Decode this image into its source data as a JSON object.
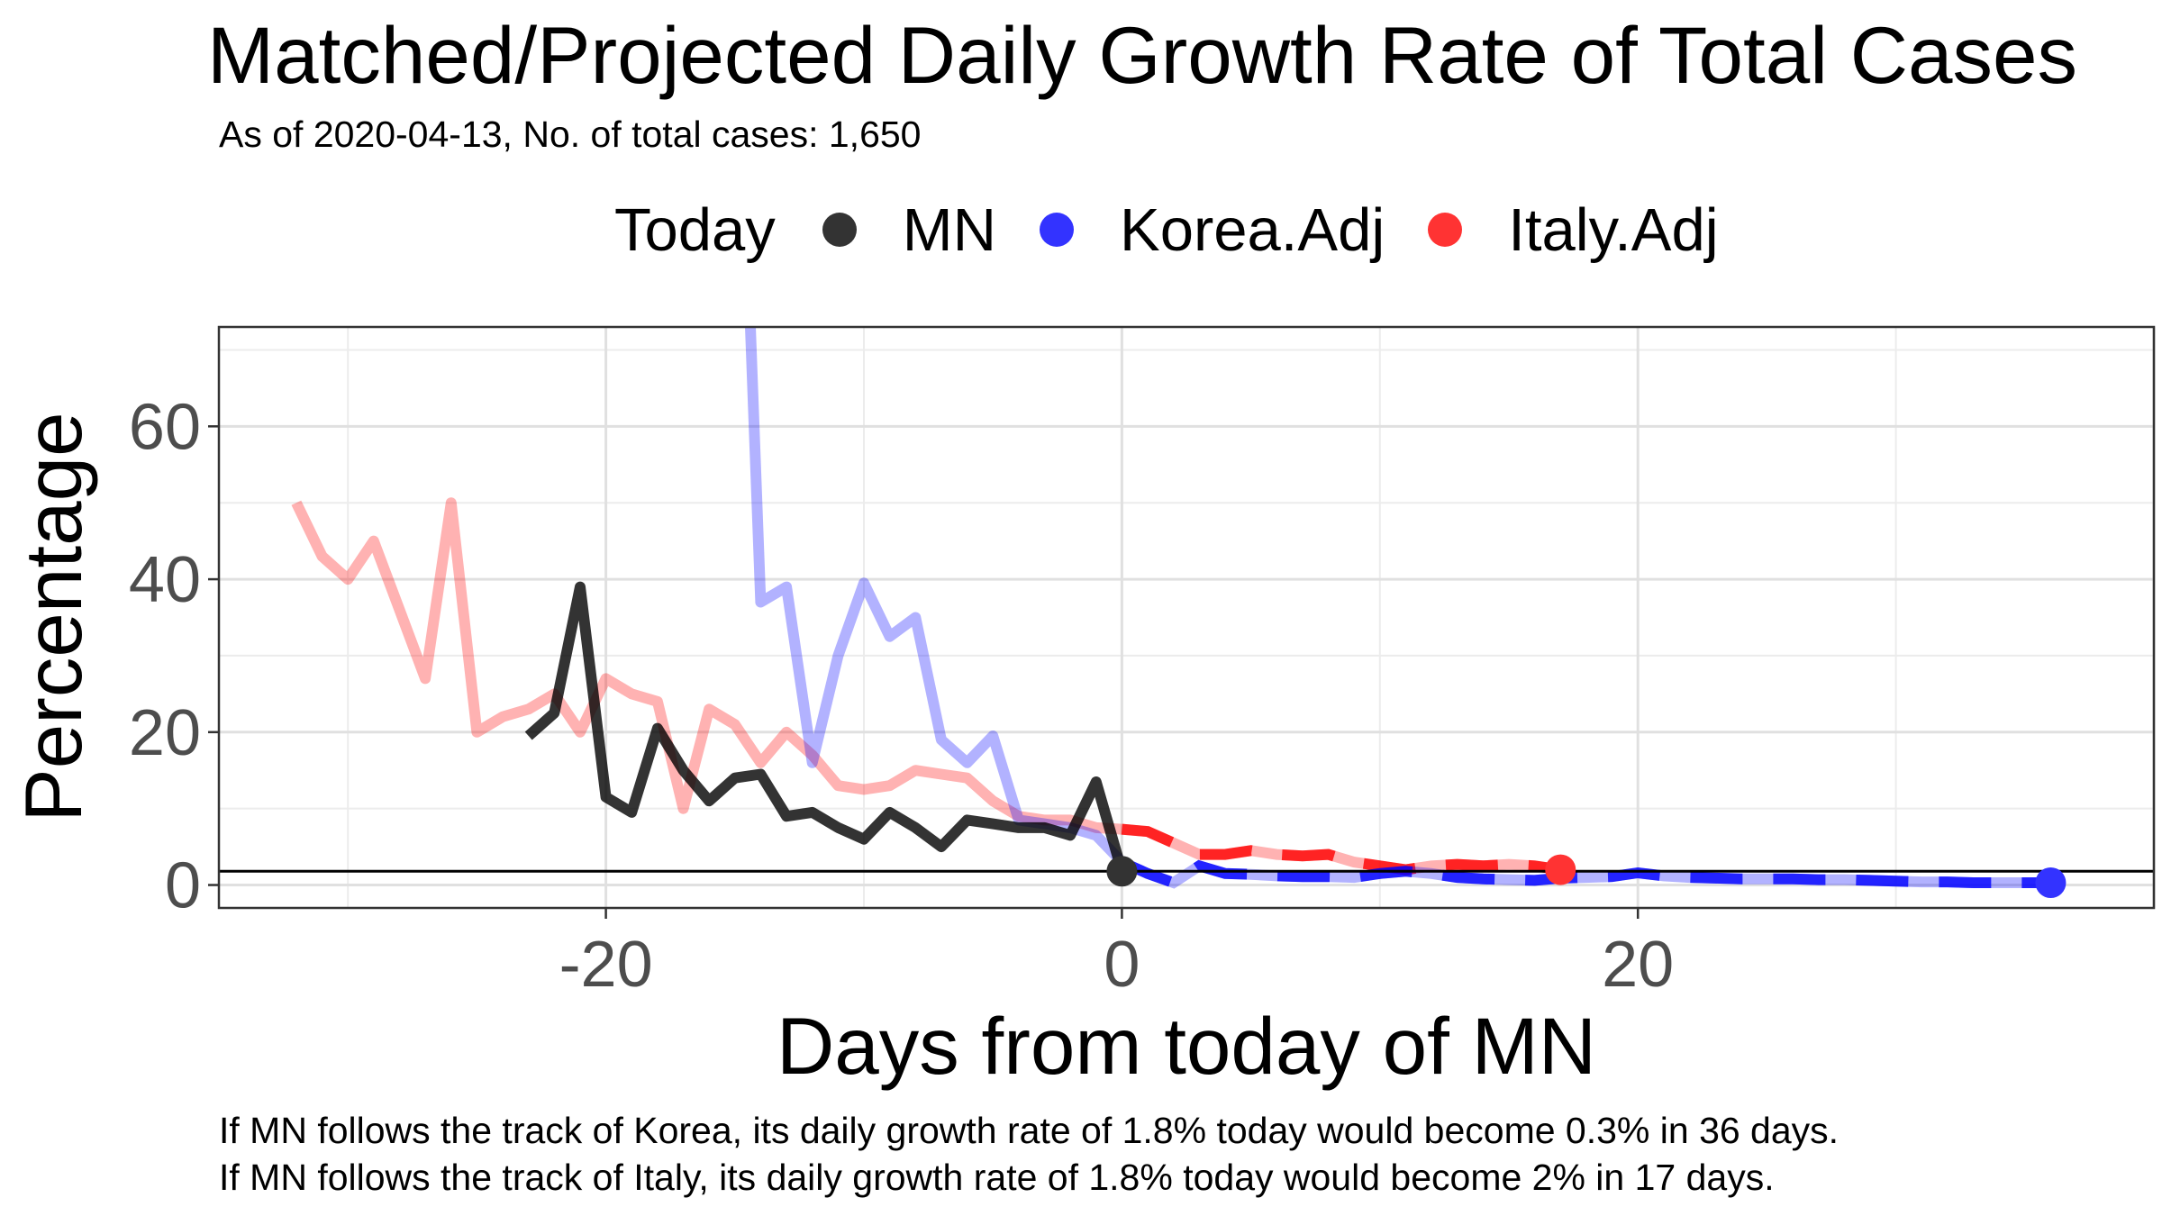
{
  "chart_data": {
    "type": "line",
    "title": "Matched/Projected Daily Growth Rate of Total Cases",
    "subtitle": "As of 2020-04-13, No. of total cases: 1,650",
    "xlabel": "Days from today of MN",
    "ylabel": "Percentage",
    "xlim": [
      -35,
      40
    ],
    "ylim": [
      -3,
      73
    ],
    "x_ticks": [
      -20,
      0,
      20
    ],
    "y_ticks": [
      0,
      20,
      40,
      60
    ],
    "grid": true,
    "legend": {
      "title": "Today",
      "position": "top"
    },
    "reference_line": {
      "y": 1.8
    },
    "series": [
      {
        "name": "Italy.Adj",
        "color": "#ff0000",
        "history": {
          "x": [
            -32,
            -31,
            -30,
            -29,
            -28,
            -27,
            -26,
            -25,
            -24,
            -23,
            -22,
            -21,
            -20,
            -19,
            -18,
            -17,
            -16,
            -15,
            -14,
            -13,
            -12,
            -11,
            -10,
            -9,
            -8,
            -7,
            -6,
            -5,
            -4,
            -3,
            -2,
            -1,
            0
          ],
          "y": [
            50,
            43,
            40,
            45,
            36,
            27,
            50,
            20,
            22,
            23,
            25,
            20,
            27,
            25,
            24,
            10,
            23,
            21,
            16,
            20,
            17,
            13,
            12.5,
            13,
            15,
            14.5,
            14,
            11,
            9,
            8.5,
            8.5,
            7.5,
            7.3
          ]
        },
        "projection": {
          "x": [
            0,
            1,
            2,
            3,
            4,
            5,
            6,
            7,
            8,
            9,
            10,
            11,
            12,
            13,
            14,
            15,
            16,
            17
          ],
          "y": [
            7.3,
            7,
            5.5,
            4,
            4,
            4.5,
            4,
            3.8,
            4,
            3,
            2.5,
            2,
            2.5,
            2.7,
            2.5,
            2.7,
            2.5,
            2
          ]
        },
        "end_point": {
          "x": 17,
          "y": 2
        }
      },
      {
        "name": "Korea.Adj",
        "color": "#0000ff",
        "history": {
          "x": [
            -14.4,
            -14,
            -13,
            -12,
            -11,
            -10,
            -9,
            -8,
            -7,
            -6,
            -5,
            -4,
            -3,
            -2,
            -1,
            0
          ],
          "y": [
            73,
            37,
            39,
            16,
            30,
            39.5,
            32.5,
            35,
            19,
            16,
            19.5,
            8.5,
            8,
            7.5,
            6.5,
            3
          ]
        },
        "projection": {
          "x": [
            0,
            1,
            2,
            3,
            4,
            5,
            6,
            7,
            8,
            9,
            10,
            11,
            12,
            13,
            14,
            15,
            16,
            17,
            18,
            19,
            20,
            21,
            22,
            23,
            24,
            25,
            26,
            27,
            28,
            29,
            30,
            31,
            32,
            33,
            34,
            35,
            36
          ],
          "y": [
            3,
            1.5,
            0.3,
            2.5,
            1.5,
            1.4,
            1.2,
            1.1,
            1.1,
            1,
            1.5,
            1.8,
            1.5,
            1,
            0.8,
            0.7,
            0.6,
            0.9,
            1,
            1.1,
            1.6,
            1.2,
            1,
            0.9,
            0.8,
            0.8,
            0.8,
            0.7,
            0.7,
            0.6,
            0.5,
            0.4,
            0.4,
            0.3,
            0.3,
            0.3,
            0.3
          ]
        },
        "end_point": {
          "x": 36,
          "y": 0.3
        }
      },
      {
        "name": "MN",
        "color": "#000000",
        "history": {
          "x": [
            -23,
            -22,
            -21,
            -20,
            -19,
            -18,
            -17,
            -16,
            -15,
            -14,
            -13,
            -12,
            -11,
            -10,
            -9,
            -8,
            -7,
            -6,
            -5,
            -4,
            -3,
            -2,
            -1,
            0
          ],
          "y": [
            19.5,
            22.5,
            39,
            11.5,
            9.5,
            20.5,
            15,
            11,
            14,
            14.5,
            9,
            9.5,
            7.5,
            6,
            9.5,
            7.5,
            5,
            8.5,
            8,
            7.5,
            7.5,
            6.5,
            13.5,
            1.8
          ]
        },
        "end_point": {
          "x": 0,
          "y": 1.8
        }
      }
    ]
  },
  "captions": [
    "If MN follows the track of Korea, its daily growth rate of 1.8% today would become 0.3% in 36 days.",
    "If MN follows the track of Italy, its daily growth rate of 1.8% today would become 2% in 17 days."
  ]
}
